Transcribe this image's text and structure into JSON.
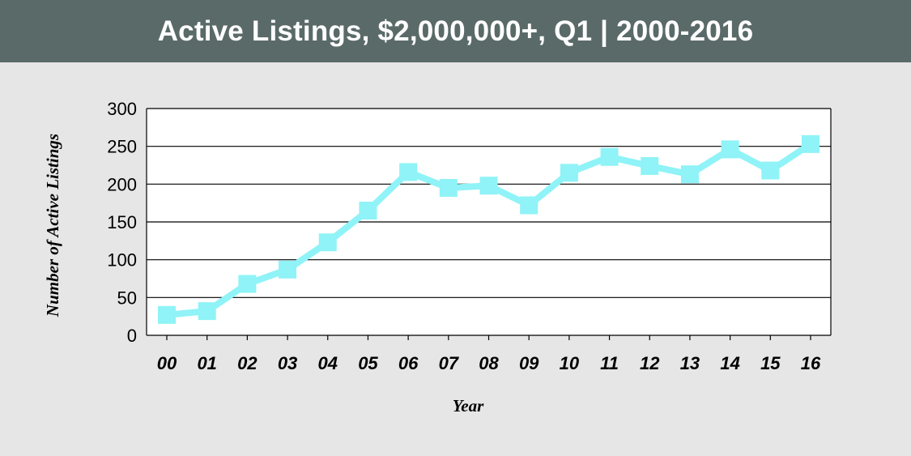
{
  "header": {
    "title": "Active Listings, $2,000,000+, Q1 | 2000-2016"
  },
  "colors": {
    "banner": "#5a6a69",
    "background": "#e6e6e6",
    "plot_area": "#ffffff",
    "series_line": "#8ff3f7"
  },
  "chart_data": {
    "type": "line",
    "title": "Active Listings, $2,000,000+, Q1 | 2000-2016",
    "xlabel": "Year",
    "ylabel": "Number of Active Listings",
    "categories": [
      "00",
      "01",
      "02",
      "03",
      "04",
      "05",
      "06",
      "07",
      "08",
      "09",
      "10",
      "11",
      "12",
      "13",
      "14",
      "15",
      "16"
    ],
    "series": [
      {
        "values": [
          27,
          32,
          68,
          87,
          123,
          165,
          216,
          195,
          198,
          172,
          215,
          236,
          224,
          213,
          246,
          218,
          253
        ],
        "marker": "square"
      }
    ],
    "ylim": [
      0,
      300
    ],
    "yticks": [
      0,
      50,
      100,
      150,
      200,
      250,
      300
    ],
    "grid": true,
    "legend": "none"
  }
}
